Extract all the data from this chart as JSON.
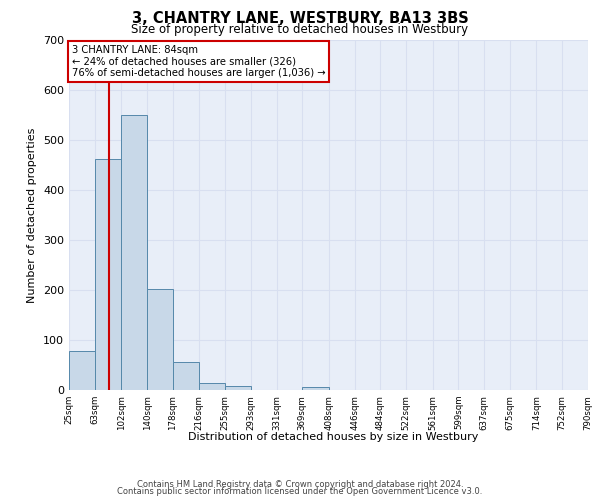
{
  "title": "3, CHANTRY LANE, WESTBURY, BA13 3BS",
  "subtitle": "Size of property relative to detached houses in Westbury",
  "xlabel": "Distribution of detached houses by size in Westbury",
  "ylabel": "Number of detached properties",
  "footer_line1": "Contains HM Land Registry data © Crown copyright and database right 2024.",
  "footer_line2": "Contains public sector information licensed under the Open Government Licence v3.0.",
  "bar_edges": [
    25,
    63,
    102,
    140,
    178,
    216,
    255,
    293,
    331,
    369,
    408,
    446,
    484,
    522,
    561,
    599,
    637,
    675,
    714,
    752,
    790
  ],
  "bar_heights": [
    78,
    462,
    550,
    203,
    56,
    15,
    8,
    0,
    0,
    7,
    0,
    0,
    0,
    0,
    0,
    0,
    0,
    0,
    0,
    0
  ],
  "bar_color": "#c8d8e8",
  "bar_edge_color": "#5588aa",
  "red_line_x": 84,
  "annotation_text": "3 CHANTRY LANE: 84sqm\n← 24% of detached houses are smaller (326)\n76% of semi-detached houses are larger (1,036) →",
  "annotation_box_color": "#ffffff",
  "annotation_box_edge_color": "#cc0000",
  "annotation_text_color": "#000000",
  "red_line_color": "#cc0000",
  "ylim": [
    0,
    700
  ],
  "yticks": [
    0,
    100,
    200,
    300,
    400,
    500,
    600,
    700
  ],
  "grid_color": "#d8dff0",
  "plot_bg_color": "#e8eef8",
  "tick_labels": [
    "25sqm",
    "63sqm",
    "102sqm",
    "140sqm",
    "178sqm",
    "216sqm",
    "255sqm",
    "293sqm",
    "331sqm",
    "369sqm",
    "408sqm",
    "446sqm",
    "484sqm",
    "522sqm",
    "561sqm",
    "599sqm",
    "637sqm",
    "675sqm",
    "714sqm",
    "752sqm",
    "790sqm"
  ]
}
